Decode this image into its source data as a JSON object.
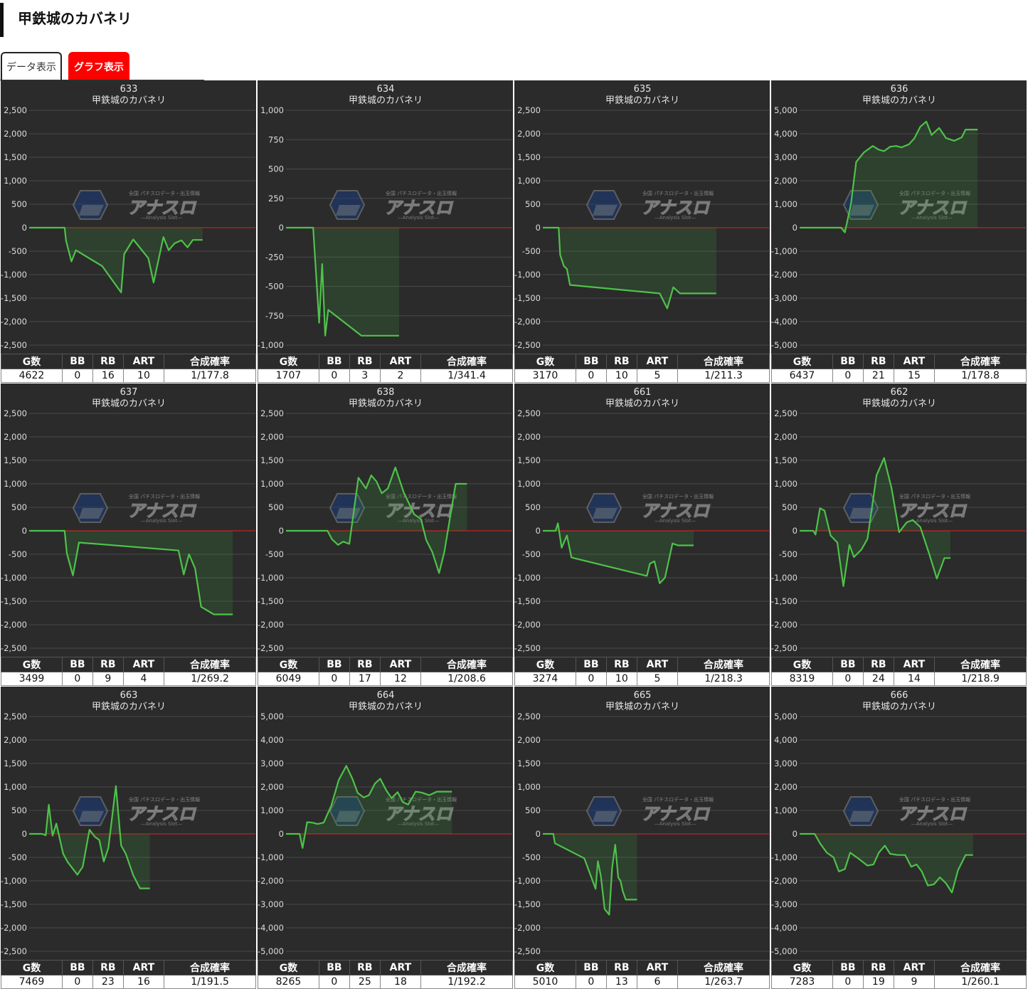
{
  "page": {
    "title": "甲鉄城のカバネリ"
  },
  "tabs": [
    {
      "label": "データ表示",
      "active": false
    },
    {
      "label": "グラフ表示",
      "active": true
    }
  ],
  "stat_headers": [
    "G数",
    "BB",
    "RB",
    "ART",
    "合成確率"
  ],
  "watermark": {
    "top": "全国 パチスロデータ・出玉情報",
    "main": "アナスロ",
    "sub": "Analysis Slot"
  },
  "colors": {
    "panel_bg": "#2b2b2b",
    "line": "#4ec24a",
    "zero_line": "#e02020",
    "tab_active": "#ff0000"
  },
  "machines": [
    {
      "number": "633",
      "name": "甲鉄城のカバネリ",
      "stats": [
        "4622",
        "0",
        "16",
        "10",
        "1/177.8"
      ],
      "chart_data": {
        "type": "area",
        "ylim": [
          -2500,
          2500
        ],
        "yticks": [
          2500,
          2000,
          1500,
          1000,
          500,
          0,
          -500,
          -1000,
          -1500,
          -2000,
          -2500
        ],
        "x": [
          0,
          0.47,
          0.49,
          0.56,
          0.62,
          0.97,
          1.22,
          1.26,
          1.38,
          1.58,
          1.65,
          1.78,
          1.85,
          1.93,
          2.02,
          2.1,
          2.17,
          2.3
        ],
        "y": [
          0,
          0,
          -280,
          -720,
          -480,
          -820,
          -1380,
          -560,
          -250,
          -650,
          -1170,
          -200,
          -480,
          -330,
          -270,
          -420,
          -260,
          -260
        ]
      }
    },
    {
      "number": "634",
      "name": "甲鉄城のカバネリ",
      "stats": [
        "1707",
        "0",
        "3",
        "2",
        "1/341.4"
      ],
      "chart_data": {
        "type": "area",
        "ylim": [
          -1000,
          1000
        ],
        "yticks": [
          1000,
          750,
          500,
          250,
          0,
          -250,
          -500,
          -750,
          -1000
        ],
        "x": [
          0,
          0.36,
          0.44,
          0.48,
          0.52,
          0.56,
          1.0,
          1.5
        ],
        "y": [
          0,
          0,
          -810,
          -310,
          -920,
          -700,
          -920,
          -920
        ]
      }
    },
    {
      "number": "635",
      "name": "甲鉄城のカバネリ",
      "stats": [
        "3170",
        "0",
        "10",
        "5",
        "1/211.3"
      ],
      "chart_data": {
        "type": "area",
        "ylim": [
          -2500,
          2500
        ],
        "yticks": [
          2500,
          2000,
          1500,
          1000,
          500,
          0,
          -500,
          -1000,
          -1500,
          -2000,
          -2500
        ],
        "x": [
          0,
          0.21,
          0.23,
          0.28,
          0.32,
          0.36,
          1.55,
          1.65,
          1.73,
          1.82,
          2.3
        ],
        "y": [
          0,
          0,
          -580,
          -820,
          -880,
          -1220,
          -1400,
          -1720,
          -1270,
          -1400,
          -1400
        ]
      }
    },
    {
      "number": "636",
      "name": "甲鉄城のカバネリ",
      "stats": [
        "6437",
        "0",
        "21",
        "15",
        "1/178.8"
      ],
      "chart_data": {
        "type": "area",
        "ylim": [
          -5000,
          5000
        ],
        "yticks": [
          5000,
          4000,
          3000,
          2000,
          1000,
          0,
          -1000,
          -2000,
          -3000,
          -4000,
          -5000
        ],
        "x": [
          0,
          0.55,
          0.6,
          0.68,
          0.75,
          0.85,
          0.97,
          1.05,
          1.12,
          1.2,
          1.28,
          1.35,
          1.45,
          1.52,
          1.6,
          1.68,
          1.75,
          1.85,
          1.94,
          2.05,
          2.15,
          2.2,
          2.36
        ],
        "y": [
          0,
          0,
          -200,
          1000,
          2800,
          3200,
          3480,
          3320,
          3260,
          3450,
          3480,
          3420,
          3550,
          3800,
          4300,
          4520,
          3950,
          4250,
          3820,
          3700,
          3850,
          4180,
          4180
        ]
      }
    },
    {
      "number": "637",
      "name": "甲鉄城のカバネリ",
      "stats": [
        "3499",
        "0",
        "9",
        "4",
        "1/269.2"
      ],
      "chart_data": {
        "type": "area",
        "ylim": [
          -2500,
          2500
        ],
        "yticks": [
          2500,
          2000,
          1500,
          1000,
          500,
          0,
          -500,
          -1000,
          -1500,
          -2000,
          -2500
        ],
        "x": [
          0,
          0.47,
          0.5,
          0.58,
          0.66,
          1.98,
          2.05,
          2.12,
          2.2,
          2.28,
          2.45,
          2.7
        ],
        "y": [
          0,
          0,
          -480,
          -950,
          -250,
          -420,
          -930,
          -500,
          -800,
          -1620,
          -1780,
          -1780
        ]
      }
    },
    {
      "number": "638",
      "name": "甲鉄城のカバネリ",
      "stats": [
        "6049",
        "0",
        "17",
        "12",
        "1/208.6"
      ],
      "chart_data": {
        "type": "area",
        "ylim": [
          -2500,
          2500
        ],
        "yticks": [
          2500,
          2000,
          1500,
          1000,
          500,
          0,
          -500,
          -1000,
          -1500,
          -2000,
          -2500
        ],
        "x": [
          0,
          0.55,
          0.61,
          0.69,
          0.76,
          0.84,
          0.96,
          1.06,
          1.13,
          1.2,
          1.27,
          1.35,
          1.45,
          1.56,
          1.7,
          1.79,
          1.86,
          1.94,
          2.03,
          2.1,
          2.25,
          2.4
        ],
        "y": [
          0,
          0,
          -180,
          -300,
          -230,
          -280,
          1130,
          900,
          1180,
          1050,
          800,
          900,
          1350,
          820,
          350,
          250,
          -200,
          -450,
          -900,
          -450,
          1000,
          1000
        ]
      }
    },
    {
      "number": "661",
      "name": "甲鉄城のカバネリ",
      "stats": [
        "3274",
        "0",
        "10",
        "5",
        "1/218.3"
      ],
      "chart_data": {
        "type": "area",
        "ylim": [
          -2500,
          2500
        ],
        "yticks": [
          2500,
          2000,
          1500,
          1000,
          500,
          0,
          -500,
          -1000,
          -1500,
          -2000,
          -2500
        ],
        "x": [
          0,
          0.17,
          0.2,
          0.25,
          0.32,
          0.38,
          1.38,
          1.42,
          1.48,
          1.55,
          1.62,
          1.72,
          1.79,
          1.89,
          2.0
        ],
        "y": [
          0,
          0,
          160,
          -360,
          -100,
          -570,
          -960,
          -700,
          -650,
          -1120,
          -1000,
          -270,
          -310,
          -310,
          -310
        ]
      }
    },
    {
      "number": "662",
      "name": "甲鉄城のカバネリ",
      "stats": [
        "8319",
        "0",
        "24",
        "14",
        "1/218.9"
      ],
      "chart_data": {
        "type": "area",
        "ylim": [
          -2500,
          2500
        ],
        "yticks": [
          2500,
          2000,
          1500,
          1000,
          500,
          0,
          -500,
          -1000,
          -1500,
          -2000,
          -2500
        ],
        "x": [
          0,
          0.18,
          0.21,
          0.27,
          0.33,
          0.41,
          0.5,
          0.58,
          0.66,
          0.72,
          0.82,
          0.9,
          1.02,
          1.12,
          1.22,
          1.32,
          1.42,
          1.5,
          1.6,
          1.72,
          1.82,
          1.92,
          2.0
        ],
        "y": [
          0,
          0,
          -80,
          480,
          430,
          -100,
          -250,
          -1180,
          -300,
          -560,
          -400,
          -170,
          1180,
          1550,
          900,
          -30,
          180,
          230,
          80,
          -500,
          -1020,
          -580,
          -580
        ]
      }
    },
    {
      "number": "663",
      "name": "甲鉄城のカバネリ",
      "stats": [
        "7469",
        "0",
        "23",
        "16",
        "1/191.5"
      ],
      "chart_data": {
        "type": "area",
        "ylim": [
          -2500,
          2500
        ],
        "yticks": [
          2500,
          2000,
          1500,
          1000,
          500,
          0,
          -500,
          -1000,
          -1500,
          -2000,
          -2500
        ],
        "x": [
          0,
          0.17,
          0.22,
          0.26,
          0.31,
          0.36,
          0.45,
          0.51,
          0.64,
          0.71,
          0.8,
          0.87,
          0.93,
          0.99,
          1.05,
          1.15,
          1.22,
          1.28,
          1.38,
          1.47,
          1.6
        ],
        "y": [
          0,
          0,
          -30,
          620,
          -40,
          220,
          -420,
          -600,
          -870,
          -700,
          90,
          -60,
          -130,
          -590,
          -300,
          1020,
          -250,
          -420,
          -880,
          -1160,
          -1160
        ]
      }
    },
    {
      "number": "664",
      "name": "甲鉄城のカバネリ",
      "stats": [
        "8265",
        "0",
        "25",
        "18",
        "1/192.2"
      ],
      "chart_data": {
        "type": "area",
        "ylim": [
          -5000,
          5000
        ],
        "yticks": [
          5000,
          4000,
          3000,
          2000,
          1000,
          0,
          -1000,
          -2000,
          -3000,
          -4000,
          -5000
        ],
        "x": [
          0,
          0.18,
          0.22,
          0.28,
          0.35,
          0.42,
          0.5,
          0.6,
          0.7,
          0.8,
          0.88,
          0.95,
          1.03,
          1.1,
          1.18,
          1.25,
          1.33,
          1.4,
          1.48,
          1.55,
          1.62,
          1.72,
          1.8,
          1.9,
          2.0,
          2.1,
          2.2
        ],
        "y": [
          0,
          0,
          -600,
          500,
          480,
          420,
          480,
          1200,
          2300,
          2900,
          2350,
          1750,
          1550,
          1650,
          2150,
          2350,
          1850,
          1520,
          1780,
          1350,
          1250,
          1800,
          1760,
          1650,
          1800,
          1800,
          1800
        ]
      }
    },
    {
      "number": "665",
      "name": "甲鉄城のカバネリ",
      "stats": [
        "5010",
        "0",
        "13",
        "6",
        "1/263.7"
      ],
      "chart_data": {
        "type": "area",
        "ylim": [
          -2500,
          2500
        ],
        "yticks": [
          2500,
          2000,
          1500,
          1000,
          500,
          0,
          -500,
          -1000,
          -1500,
          -2000,
          -2500
        ],
        "x": [
          0,
          0.14,
          0.16,
          0.55,
          0.7,
          0.73,
          0.77,
          0.82,
          0.88,
          0.92,
          0.96,
          1.0,
          1.03,
          1.06,
          1.1,
          1.19,
          1.25
        ],
        "y": [
          0,
          0,
          -200,
          -520,
          -1170,
          -580,
          -900,
          -1600,
          -1720,
          -720,
          -230,
          -930,
          -1000,
          -1220,
          -1400,
          -1400,
          -1400
        ]
      }
    },
    {
      "number": "666",
      "name": "甲鉄城のカバネリ",
      "stats": [
        "7283",
        "0",
        "19",
        "9",
        "1/260.1"
      ],
      "chart_data": {
        "type": "area",
        "ylim": [
          -5000,
          5000
        ],
        "yticks": [
          5000,
          4000,
          3000,
          2000,
          1000,
          0,
          -1000,
          -2000,
          -3000,
          -4000,
          -5000
        ],
        "x": [
          0,
          0.2,
          0.27,
          0.36,
          0.45,
          0.52,
          0.6,
          0.67,
          0.78,
          0.9,
          0.98,
          1.05,
          1.13,
          1.2,
          1.3,
          1.4,
          1.48,
          1.55,
          1.62,
          1.7,
          1.78,
          1.86,
          1.94,
          2.02,
          2.1,
          2.2,
          2.3
        ],
        "y": [
          0,
          0,
          -400,
          -800,
          -1000,
          -1600,
          -1500,
          -800,
          -1050,
          -1350,
          -1300,
          -800,
          -500,
          -850,
          -900,
          -900,
          -1400,
          -1300,
          -1600,
          -2200,
          -2150,
          -1850,
          -2100,
          -2500,
          -1550,
          -900,
          -900
        ]
      }
    }
  ]
}
